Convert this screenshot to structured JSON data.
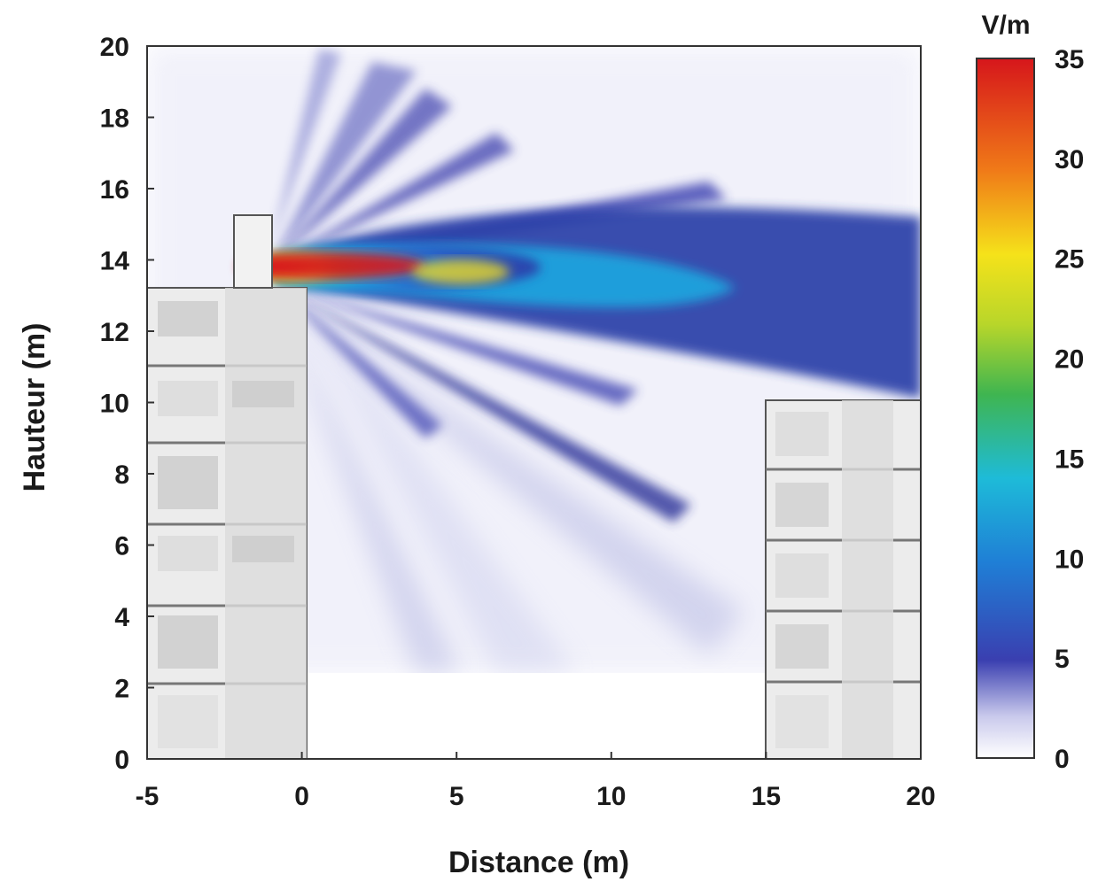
{
  "chart_data": {
    "type": "heatmap",
    "title": "",
    "xlabel": "Distance (m)",
    "ylabel": "Hauteur (m)",
    "xlim": [
      -5,
      20
    ],
    "ylim": [
      0,
      20
    ],
    "xticks": [
      "-5",
      "0",
      "5",
      "10",
      "15",
      "20"
    ],
    "yticks": [
      "0",
      "2",
      "4",
      "6",
      "8",
      "10",
      "12",
      "14",
      "16",
      "18",
      "20"
    ],
    "colorbar": {
      "unit": "V/m",
      "range": [
        0,
        35
      ],
      "ticks": [
        "0",
        "5",
        "10",
        "15",
        "20",
        "25",
        "30",
        "35"
      ],
      "colors": [
        "#ffffff",
        "#3a3fb0",
        "#1ea7e0",
        "#3fb550",
        "#f5e21a",
        "#f07a18",
        "#d6161b"
      ]
    },
    "source": {
      "x": -1.0,
      "y": 13.8,
      "peak_value": 35
    },
    "main_beam": {
      "angle_deg": -2,
      "value_at_5m": 25,
      "value_at_10m": 10,
      "value_at_20m": 6
    },
    "buildings": [
      {
        "name": "left building",
        "x_range": [
          -5,
          0
        ],
        "height": 13.2,
        "floors": 6
      },
      {
        "name": "antenna mast",
        "x_range": [
          -2.2,
          -1.0
        ],
        "height": 15.2,
        "floors": 0
      },
      {
        "name": "right building",
        "x_range": [
          15,
          20
        ],
        "height": 10.1,
        "floors": 5
      }
    ]
  }
}
